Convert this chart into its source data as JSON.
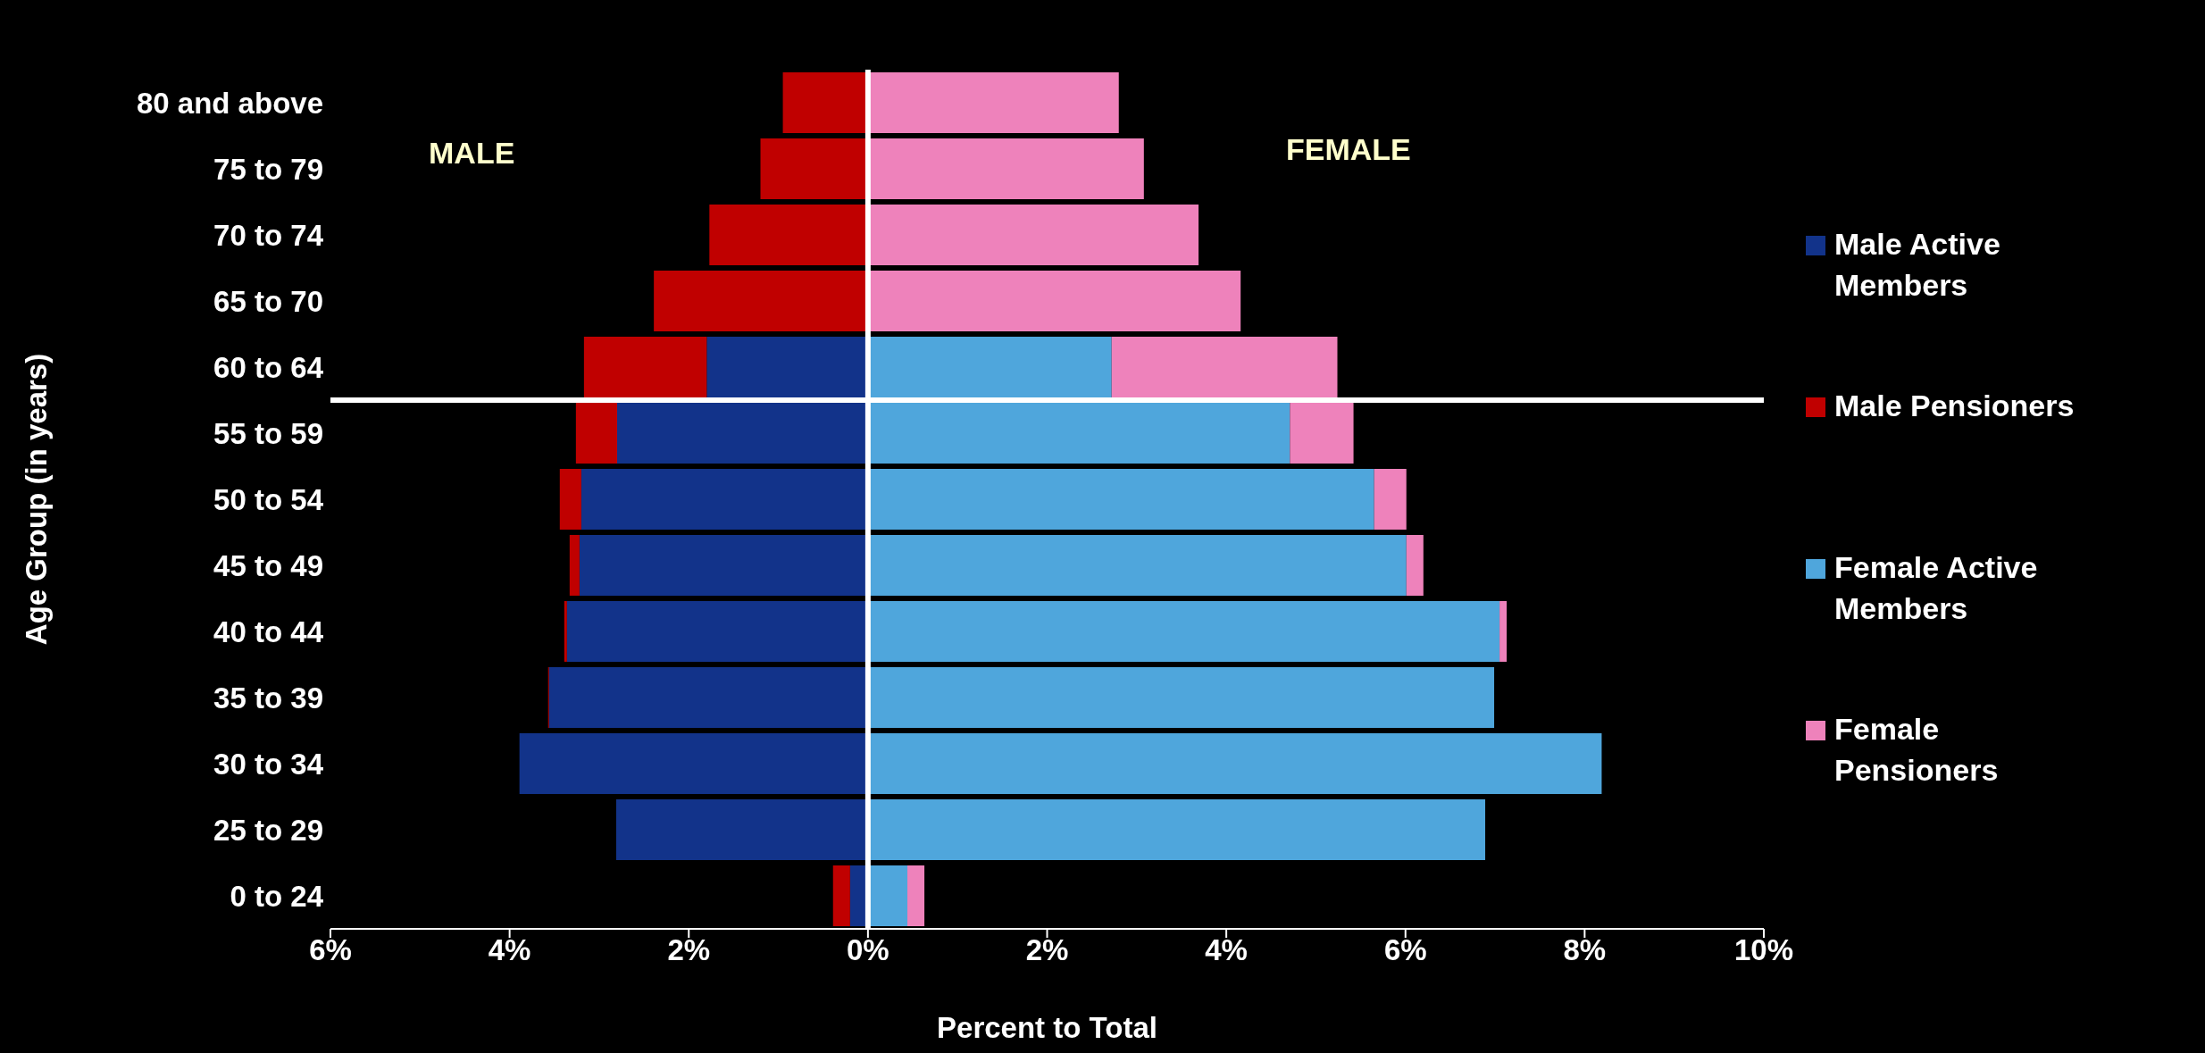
{
  "chart_data": {
    "type": "bar",
    "orientation": "horizontal",
    "stacked": true,
    "xlabel": "Percent to Total",
    "ylabel": "Age Group (in years)",
    "categories": [
      "80 and above",
      "75 to 79",
      "70 to 74",
      "65 to 70",
      "60 to 64",
      "55 to 59",
      "50 to 54",
      "45 to 49",
      "40 to 44",
      "35 to 39",
      "30 to 34",
      "25 to 29",
      "0 to 24"
    ],
    "series": [
      {
        "name": "Male Active Members",
        "color": "#12338a",
        "values": [
          0,
          0,
          0,
          0,
          -1.8,
          -2.8,
          -3.2,
          -3.22,
          -3.36,
          -3.56,
          -3.89,
          -2.81,
          -0.2
        ]
      },
      {
        "name": "Male Pensioners",
        "color": "#c00000",
        "values": [
          -0.95,
          -1.2,
          -1.77,
          -2.39,
          -1.37,
          -0.46,
          -0.24,
          -0.11,
          -0.03,
          -0.01,
          0,
          0,
          -0.19
        ]
      },
      {
        "name": "Female Active Members",
        "color": "#4fa6dc",
        "values": [
          0,
          0,
          0,
          0,
          2.72,
          4.71,
          5.65,
          6.01,
          7.05,
          6.99,
          8.19,
          6.89,
          0.44
        ]
      },
      {
        "name": "Female Pensioners",
        "color": "#ee82bb",
        "values": [
          2.8,
          3.08,
          3.69,
          4.16,
          2.52,
          0.71,
          0.36,
          0.19,
          0.08,
          0,
          0,
          0,
          0.19
        ]
      }
    ],
    "xlim": [
      -6,
      10
    ],
    "xticks": [
      {
        "value": -6,
        "label": "6%"
      },
      {
        "value": -4,
        "label": "4%"
      },
      {
        "value": -2,
        "label": "2%"
      },
      {
        "value": 0,
        "label": "0%"
      },
      {
        "value": 2,
        "label": "2%"
      },
      {
        "value": 4,
        "label": "4%"
      },
      {
        "value": 6,
        "label": "6%"
      },
      {
        "value": 8,
        "label": "8%"
      },
      {
        "value": 10,
        "label": "10%"
      }
    ],
    "ref_lines": [
      {
        "axis": "x",
        "value": 0,
        "color": "#ffffff"
      },
      {
        "axis": "y",
        "value": "60 to 64",
        "color": "#ffffff"
      }
    ],
    "annotations": [
      "MALE",
      "FEMALE"
    ],
    "legend": "right",
    "grid": false
  }
}
